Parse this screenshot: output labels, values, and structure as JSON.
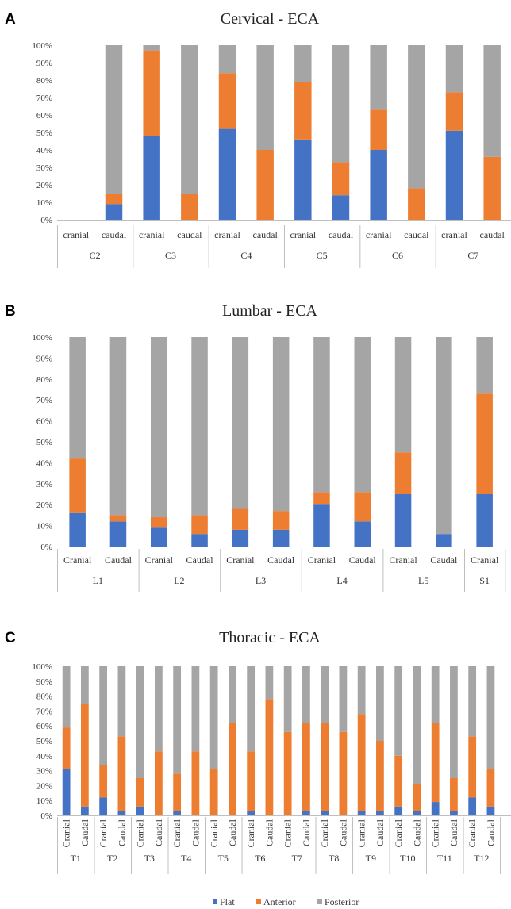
{
  "colors": {
    "flat": "#4472c4",
    "anterior": "#ed7d31",
    "posterior": "#a5a5a5"
  },
  "legend": {
    "items": [
      "Flat",
      "Anterior",
      "Posterior"
    ],
    "position": "bottom"
  },
  "chart_data": [
    {
      "panel": "A",
      "type": "bar",
      "stacked": true,
      "title": "Cervical - ECA",
      "ylim": [
        0,
        100
      ],
      "yticks": [
        "0%",
        "10%",
        "20%",
        "30%",
        "40%",
        "50%",
        "60%",
        "70%",
        "80%",
        "90%",
        "100%"
      ],
      "groups": [
        "C2",
        "C3",
        "C4",
        "C5",
        "C6",
        "C7"
      ],
      "categories": [
        "cranial",
        "caudal",
        "cranial",
        "caudal",
        "cranial",
        "caudal",
        "cranial",
        "caudal",
        "cranial",
        "caudal",
        "cranial",
        "caudal"
      ],
      "series": [
        {
          "name": "Flat",
          "values": [
            0,
            9,
            48,
            0,
            52,
            0,
            46,
            14,
            40,
            0,
            51,
            0
          ]
        },
        {
          "name": "Anterior",
          "values": [
            0,
            6,
            49,
            15,
            32,
            40,
            33,
            19,
            23,
            18,
            22,
            36
          ]
        },
        {
          "name": "Posterior",
          "values": [
            0,
            85,
            3,
            85,
            16,
            60,
            21,
            67,
            37,
            82,
            27,
            64
          ]
        }
      ]
    },
    {
      "panel": "B",
      "type": "bar",
      "stacked": true,
      "title": "Lumbar - ECA",
      "ylim": [
        0,
        100
      ],
      "yticks": [
        "0%",
        "10%",
        "20%",
        "30%",
        "40%",
        "50%",
        "60%",
        "70%",
        "80%",
        "90%",
        "100%"
      ],
      "groups": [
        "L1",
        "L2",
        "L3",
        "L4",
        "L5",
        "S1"
      ],
      "categories": [
        "Cranial",
        "Caudal",
        "Cranial",
        "Caudal",
        "Cranial",
        "Caudal",
        "Cranial",
        "Caudal",
        "Cranial",
        "Caudal",
        "Cranial"
      ],
      "series": [
        {
          "name": "Flat",
          "values": [
            16,
            12,
            9,
            6,
            8,
            8,
            20,
            12,
            25,
            6,
            25
          ]
        },
        {
          "name": "Anterior",
          "values": [
            26,
            3,
            5,
            9,
            10,
            9,
            6,
            14,
            20,
            0,
            48
          ]
        },
        {
          "name": "Posterior",
          "values": [
            58,
            85,
            86,
            85,
            82,
            83,
            74,
            74,
            55,
            94,
            27
          ]
        }
      ]
    },
    {
      "panel": "C",
      "type": "bar",
      "stacked": true,
      "title": "Thoracic - ECA",
      "ylim": [
        0,
        100
      ],
      "yticks": [
        "0%",
        "10%",
        "20%",
        "30%",
        "40%",
        "50%",
        "60%",
        "70%",
        "80%",
        "90%",
        "100%"
      ],
      "groups": [
        "T1",
        "T2",
        "T3",
        "T4",
        "T5",
        "T6",
        "T7",
        "T8",
        "T9",
        "T10",
        "T11",
        "T12"
      ],
      "categories": [
        "Cranial",
        "Caudal",
        "Cranial",
        "Caudal",
        "Cranial",
        "Caudal",
        "Cranial",
        "Caudal",
        "Cranial",
        "Caudal",
        "Cranial",
        "Caudal",
        "Cranial",
        "Caudal",
        "Cranial",
        "Caudal",
        "Cranial",
        "Caudal",
        "Cranial",
        "Caudal",
        "Cranial",
        "Caudal",
        "Cranial",
        "Caudal"
      ],
      "series": [
        {
          "name": "Flat",
          "values": [
            31,
            6,
            12,
            3,
            6,
            0,
            3,
            0,
            0,
            0,
            3,
            0,
            0,
            3,
            3,
            0,
            3,
            3,
            6,
            3,
            9,
            3,
            12,
            6
          ]
        },
        {
          "name": "Anterior",
          "values": [
            28,
            69,
            22,
            50,
            19,
            43,
            25,
            43,
            31,
            62,
            40,
            78,
            56,
            59,
            59,
            56,
            65,
            47,
            34,
            18,
            53,
            22,
            41,
            25
          ]
        },
        {
          "name": "Posterior",
          "values": [
            41,
            25,
            66,
            47,
            75,
            57,
            72,
            57,
            69,
            38,
            57,
            22,
            44,
            38,
            38,
            44,
            32,
            50,
            60,
            79,
            38,
            75,
            47,
            69
          ]
        }
      ]
    }
  ]
}
